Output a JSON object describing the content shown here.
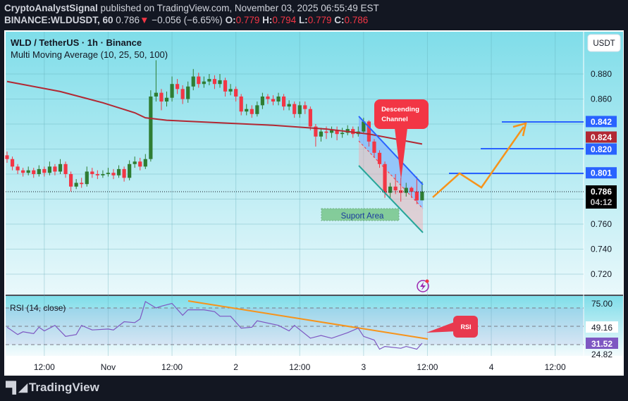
{
  "header": {
    "author": "CryptoAnalystSignal",
    "published": "published on TradingView.com, November 03, 2025 06:55:49 EST",
    "symbol": "BINANCE:WLDUSDT, 60",
    "last": "0.786",
    "change": "−0.056 (−6.65%)",
    "o_label": "O:",
    "o": "0.779",
    "h_label": "H:",
    "h": "0.794",
    "l_label": "L:",
    "l": "0.779",
    "c_label": "C:",
    "c": "0.786"
  },
  "legend": {
    "title": "WLD / TetherUS · 1h · Binance",
    "indicator": "Multi Moving Average (10, 25, 50, 100)"
  },
  "currency_button": "USDT",
  "price_axis": [
    "0.880",
    "0.860",
    "0.760",
    "0.740",
    "0.720"
  ],
  "price_tags": [
    {
      "value": "0.842",
      "color": "#2962ff"
    },
    {
      "value": "0.824",
      "color": "#b22833"
    },
    {
      "value": "0.820",
      "color": "#2962ff"
    },
    {
      "value": "0.801",
      "color": "#2962ff"
    }
  ],
  "last_price_tag": {
    "value": "0.786",
    "countdown": "04:12"
  },
  "annotations": {
    "channel_label": [
      "Descending",
      "Channel"
    ],
    "support_label": "Suport Area",
    "rsi_callout": "RSI"
  },
  "rsi": {
    "label": "RSI (14, close)",
    "axis": [
      "75.00",
      "24.82"
    ],
    "tags": {
      "ma": "49.16",
      "value": "31.52"
    },
    "color": "#7e57c2",
    "levels": [
      70,
      50,
      30
    ],
    "points": [
      [
        "2025-10-31 05:00",
        49
      ],
      [
        "2025-10-31 07:00",
        41
      ],
      [
        "2025-10-31 08:00",
        44
      ],
      [
        "2025-10-31 10:00",
        42
      ],
      [
        "2025-10-31 11:00",
        49
      ],
      [
        "2025-10-31 12:00",
        45
      ],
      [
        "2025-10-31 14:00",
        51
      ],
      [
        "2025-10-31 16:00",
        39
      ],
      [
        "2025-10-31 18:00",
        41
      ],
      [
        "2025-10-31 19:00",
        51
      ],
      [
        "2025-10-31 21:00",
        46
      ],
      [
        "2025-11-01 00:00",
        47
      ],
      [
        "2025-11-01 01:00",
        46
      ],
      [
        "2025-11-01 03:00",
        55
      ],
      [
        "2025-11-01 05:00",
        54
      ],
      [
        "2025-11-01 06:00",
        58
      ],
      [
        "2025-11-01 07:00",
        77
      ],
      [
        "2025-11-01 09:00",
        70
      ],
      [
        "2025-11-01 10:00",
        72
      ],
      [
        "2025-11-01 12:00",
        75
      ],
      [
        "2025-11-01 14:00",
        62
      ],
      [
        "2025-11-01 15:00",
        68
      ],
      [
        "2025-11-01 18:00",
        68
      ],
      [
        "2025-11-01 20:00",
        66
      ],
      [
        "2025-11-01 21:00",
        61
      ],
      [
        "2025-11-01 23:00",
        61
      ],
      [
        "2025-11-02 01:00",
        48
      ],
      [
        "2025-11-02 03:00",
        49
      ],
      [
        "2025-11-02 04:00",
        56
      ],
      [
        "2025-11-02 08:00",
        51
      ],
      [
        "2025-11-02 10:00",
        45
      ],
      [
        "2025-11-02 11:00",
        51
      ],
      [
        "2025-11-02 14:00",
        37
      ],
      [
        "2025-11-02 16:00",
        40
      ],
      [
        "2025-11-02 18:00",
        37
      ],
      [
        "2025-11-02 21:00",
        43
      ],
      [
        "2025-11-02 23:00",
        48
      ],
      [
        "2025-11-03 00:00",
        39
      ],
      [
        "2025-11-03 02:00",
        35
      ],
      [
        "2025-11-03 03:00",
        25
      ],
      [
        "2025-11-03 04:00",
        28
      ],
      [
        "2025-11-03 07:00",
        26
      ],
      [
        "2025-11-03 08:00",
        28
      ],
      [
        "2025-11-03 10:00",
        25
      ],
      [
        "2025-11-03 11:00",
        31.52
      ]
    ]
  },
  "time_axis": [
    {
      "t": "2025-10-31 12:00",
      "label": "12:00"
    },
    {
      "t": "2025-11-01 00:00",
      "label": "Nov"
    },
    {
      "t": "2025-11-01 12:00",
      "label": "12:00"
    },
    {
      "t": "2025-11-02 00:00",
      "label": "2"
    },
    {
      "t": "2025-11-02 12:00",
      "label": "12:00"
    },
    {
      "t": "2025-11-03 00:00",
      "label": "3"
    },
    {
      "t": "2025-11-03 12:00",
      "label": "12:00"
    },
    {
      "t": "2025-11-04 00:00",
      "label": "4"
    },
    {
      "t": "2025-11-04 12:00",
      "label": "12:00"
    }
  ],
  "footer": {
    "brand": "TradingView"
  },
  "colors": {
    "up": "#2e7d32",
    "down": "#f23645",
    "ma": "#b22833",
    "channel": "#2962ff",
    "projection": "#f7931a"
  },
  "chart_data": {
    "type": "candlestick",
    "title": "WLD / TetherUS · 1h · Binance",
    "ylim": [
      0.705,
      0.9
    ],
    "grid": true,
    "candles": [
      [
        "2025-10-31 05:00",
        0.815,
        0.818,
        0.809,
        0.812
      ],
      [
        "2025-10-31 06:00",
        0.812,
        0.814,
        0.803,
        0.806
      ],
      [
        "2025-10-31 07:00",
        0.806,
        0.808,
        0.8,
        0.803
      ],
      [
        "2025-10-31 08:00",
        0.803,
        0.805,
        0.798,
        0.801
      ],
      [
        "2025-10-31 09:00",
        0.801,
        0.806,
        0.799,
        0.803
      ],
      [
        "2025-10-31 10:00",
        0.803,
        0.805,
        0.797,
        0.8
      ],
      [
        "2025-10-31 11:00",
        0.8,
        0.807,
        0.798,
        0.804
      ],
      [
        "2025-10-31 12:00",
        0.804,
        0.806,
        0.798,
        0.801
      ],
      [
        "2025-10-31 13:00",
        0.801,
        0.81,
        0.799,
        0.806
      ],
      [
        "2025-10-31 14:00",
        0.806,
        0.808,
        0.799,
        0.802
      ],
      [
        "2025-10-31 15:00",
        0.802,
        0.812,
        0.8,
        0.808
      ],
      [
        "2025-10-31 16:00",
        0.808,
        0.81,
        0.797,
        0.8
      ],
      [
        "2025-10-31 17:00",
        0.8,
        0.802,
        0.786,
        0.79
      ],
      [
        "2025-10-31 18:00",
        0.79,
        0.796,
        0.788,
        0.793
      ],
      [
        "2025-10-31 19:00",
        0.793,
        0.797,
        0.789,
        0.792
      ],
      [
        "2025-10-31 20:00",
        0.792,
        0.806,
        0.79,
        0.802
      ],
      [
        "2025-10-31 21:00",
        0.802,
        0.805,
        0.797,
        0.8
      ],
      [
        "2025-10-31 22:00",
        0.8,
        0.803,
        0.796,
        0.799
      ],
      [
        "2025-10-31 23:00",
        0.799,
        0.803,
        0.797,
        0.8
      ],
      [
        "2025-11-01 00:00",
        0.8,
        0.805,
        0.798,
        0.801
      ],
      [
        "2025-11-01 01:00",
        0.801,
        0.804,
        0.796,
        0.799
      ],
      [
        "2025-11-01 02:00",
        0.799,
        0.807,
        0.797,
        0.804
      ],
      [
        "2025-11-01 03:00",
        0.804,
        0.806,
        0.794,
        0.797
      ],
      [
        "2025-11-01 04:00",
        0.797,
        0.811,
        0.795,
        0.808
      ],
      [
        "2025-11-01 05:00",
        0.808,
        0.814,
        0.805,
        0.81
      ],
      [
        "2025-11-01 06:00",
        0.81,
        0.813,
        0.803,
        0.806
      ],
      [
        "2025-11-01 07:00",
        0.806,
        0.816,
        0.804,
        0.812
      ],
      [
        "2025-11-01 08:00",
        0.812,
        0.867,
        0.81,
        0.862
      ],
      [
        "2025-11-01 09:00",
        0.862,
        0.891,
        0.858,
        0.865
      ],
      [
        "2025-11-01 10:00",
        0.865,
        0.868,
        0.851,
        0.858
      ],
      [
        "2025-11-01 11:00",
        0.858,
        0.866,
        0.854,
        0.861
      ],
      [
        "2025-11-01 12:00",
        0.861,
        0.878,
        0.858,
        0.872
      ],
      [
        "2025-11-01 13:00",
        0.872,
        0.876,
        0.864,
        0.868
      ],
      [
        "2025-11-01 14:00",
        0.868,
        0.871,
        0.856,
        0.86
      ],
      [
        "2025-11-01 15:00",
        0.86,
        0.874,
        0.857,
        0.87
      ],
      [
        "2025-11-01 16:00",
        0.87,
        0.884,
        0.867,
        0.878
      ],
      [
        "2025-11-01 17:00",
        0.878,
        0.881,
        0.869,
        0.872
      ],
      [
        "2025-11-01 18:00",
        0.872,
        0.878,
        0.869,
        0.874
      ],
      [
        "2025-11-01 19:00",
        0.874,
        0.88,
        0.871,
        0.876
      ],
      [
        "2025-11-01 20:00",
        0.876,
        0.879,
        0.868,
        0.872
      ],
      [
        "2025-11-01 21:00",
        0.872,
        0.88,
        0.869,
        0.875
      ],
      [
        "2025-11-01 22:00",
        0.875,
        0.877,
        0.862,
        0.866
      ],
      [
        "2025-11-01 23:00",
        0.866,
        0.872,
        0.863,
        0.868
      ],
      [
        "2025-11-02 00:00",
        0.868,
        0.87,
        0.858,
        0.862
      ],
      [
        "2025-11-02 01:00",
        0.862,
        0.864,
        0.847,
        0.85
      ],
      [
        "2025-11-02 02:00",
        0.85,
        0.856,
        0.847,
        0.852
      ],
      [
        "2025-11-02 03:00",
        0.852,
        0.855,
        0.845,
        0.848
      ],
      [
        "2025-11-02 04:00",
        0.848,
        0.858,
        0.846,
        0.855
      ],
      [
        "2025-11-02 05:00",
        0.855,
        0.865,
        0.852,
        0.862
      ],
      [
        "2025-11-02 06:00",
        0.862,
        0.864,
        0.856,
        0.86
      ],
      [
        "2025-11-02 07:00",
        0.86,
        0.863,
        0.855,
        0.858
      ],
      [
        "2025-11-02 08:00",
        0.858,
        0.865,
        0.855,
        0.862
      ],
      [
        "2025-11-02 09:00",
        0.862,
        0.864,
        0.851,
        0.854
      ],
      [
        "2025-11-02 10:00",
        0.854,
        0.859,
        0.851,
        0.856
      ],
      [
        "2025-11-02 11:00",
        0.856,
        0.858,
        0.845,
        0.848
      ],
      [
        "2025-11-02 12:00",
        0.848,
        0.858,
        0.845,
        0.855
      ],
      [
        "2025-11-02 13:00",
        0.855,
        0.858,
        0.848,
        0.852
      ],
      [
        "2025-11-02 14:00",
        0.852,
        0.854,
        0.835,
        0.838
      ],
      [
        "2025-11-02 15:00",
        0.838,
        0.84,
        0.822,
        0.83
      ],
      [
        "2025-11-02 16:00",
        0.83,
        0.837,
        0.826,
        0.834
      ],
      [
        "2025-11-02 17:00",
        0.834,
        0.838,
        0.828,
        0.833
      ],
      [
        "2025-11-02 18:00",
        0.833,
        0.838,
        0.829,
        0.835
      ],
      [
        "2025-11-02 19:00",
        0.835,
        0.838,
        0.827,
        0.832
      ],
      [
        "2025-11-02 20:00",
        0.832,
        0.837,
        0.829,
        0.833
      ],
      [
        "2025-11-02 21:00",
        0.833,
        0.839,
        0.831,
        0.836
      ],
      [
        "2025-11-02 22:00",
        0.836,
        0.838,
        0.829,
        0.832
      ],
      [
        "2025-11-02 23:00",
        0.832,
        0.838,
        0.83,
        0.834
      ],
      [
        "2025-11-03 00:00",
        0.834,
        0.845,
        0.832,
        0.842
      ],
      [
        "2025-11-03 01:00",
        0.842,
        0.843,
        0.822,
        0.826
      ],
      [
        "2025-11-03 02:00",
        0.826,
        0.828,
        0.813,
        0.817
      ],
      [
        "2025-11-03 03:00",
        0.817,
        0.819,
        0.805,
        0.808
      ],
      [
        "2025-11-03 04:00",
        0.808,
        0.81,
        0.781,
        0.785
      ],
      [
        "2025-11-03 05:00",
        0.785,
        0.793,
        0.78,
        0.79
      ],
      [
        "2025-11-03 06:00",
        0.79,
        0.8,
        0.784,
        0.787
      ],
      [
        "2025-11-03 07:00",
        0.787,
        0.797,
        0.778,
        0.785
      ],
      [
        "2025-11-03 08:00",
        0.785,
        0.793,
        0.782,
        0.789
      ],
      [
        "2025-11-03 09:00",
        0.789,
        0.79,
        0.781,
        0.786
      ],
      [
        "2025-11-03 10:00",
        0.786,
        0.798,
        0.776,
        0.779
      ],
      [
        "2025-11-03 11:00",
        0.779,
        0.794,
        0.779,
        0.786
      ]
    ],
    "moving_average": [
      [
        "2025-10-31 05:00",
        0.874
      ],
      [
        "2025-10-31 15:00",
        0.866
      ],
      [
        "2025-10-31 23:00",
        0.857
      ],
      [
        "2025-11-01 05:00",
        0.849
      ],
      [
        "2025-11-01 07:00",
        0.845
      ],
      [
        "2025-11-01 11:00",
        0.843
      ],
      [
        "2025-11-01 21:00",
        0.841
      ],
      [
        "2025-11-02 07:00",
        0.839
      ],
      [
        "2025-11-02 17:00",
        0.836
      ],
      [
        "2025-11-03 01:00",
        0.832
      ],
      [
        "2025-11-03 11:00",
        0.824
      ]
    ]
  }
}
